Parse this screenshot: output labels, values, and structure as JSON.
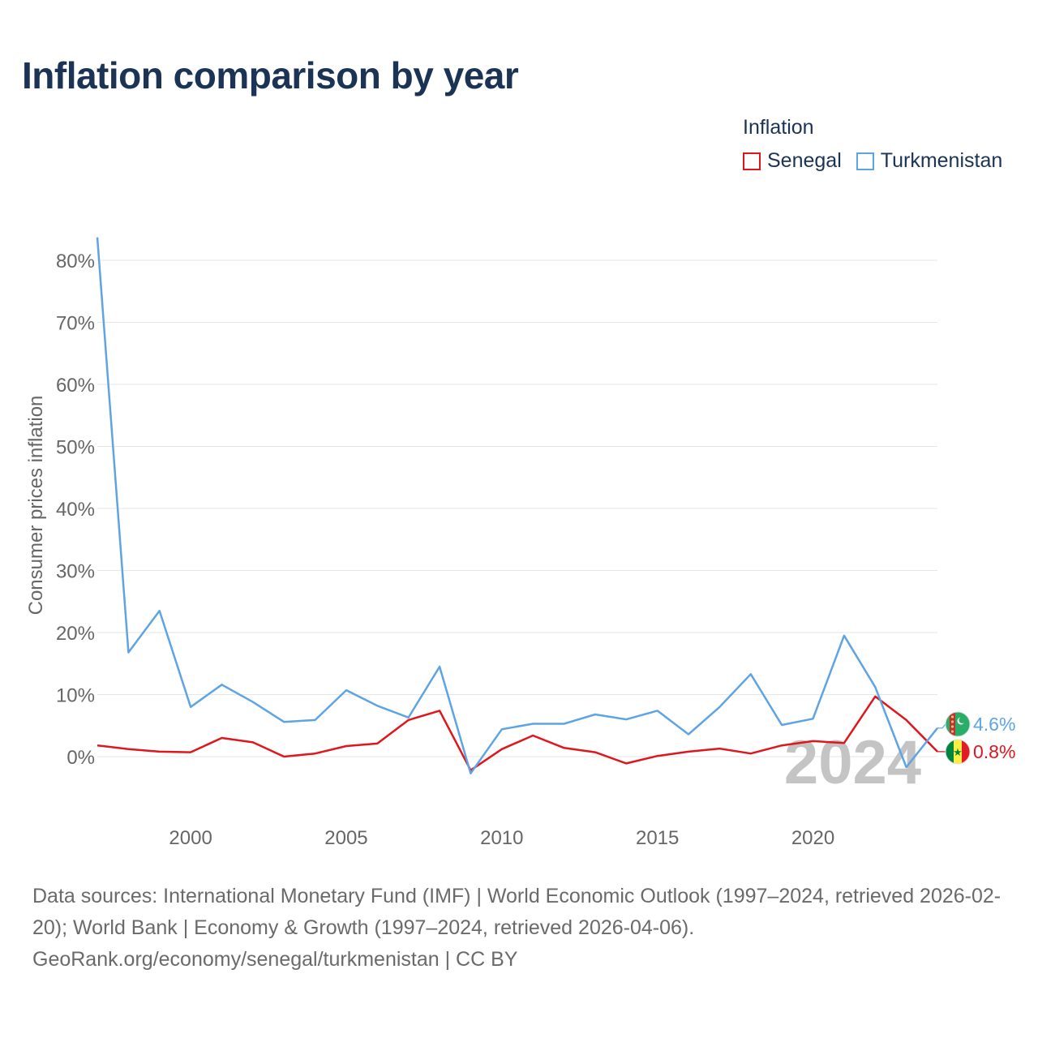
{
  "title": "Inflation comparison by year",
  "legend": {
    "title": "Inflation",
    "items": [
      {
        "label": "Senegal",
        "color": "#e0161d"
      },
      {
        "label": "Turkmenistan",
        "color": "#5ea4e4"
      }
    ]
  },
  "chart_data": {
    "type": "line",
    "title": "Inflation comparison by year",
    "xlabel": "",
    "ylabel": "Consumer prices inflation",
    "x": [
      1997,
      1998,
      1999,
      2000,
      2001,
      2002,
      2003,
      2004,
      2005,
      2006,
      2007,
      2008,
      2009,
      2010,
      2011,
      2012,
      2013,
      2014,
      2015,
      2016,
      2017,
      2018,
      2019,
      2020,
      2021,
      2022,
      2023,
      2024
    ],
    "xlim": [
      1997,
      2024
    ],
    "ylim": [
      -10,
      84
    ],
    "x_ticks": [
      2000,
      2005,
      2010,
      2015,
      2020
    ],
    "y_ticks": [
      0,
      10,
      20,
      30,
      40,
      50,
      60,
      70,
      80
    ],
    "y_tick_labels": [
      "0%",
      "10%",
      "20%",
      "30%",
      "40%",
      "50%",
      "60%",
      "70%",
      "80%"
    ],
    "series": [
      {
        "name": "Senegal",
        "color": "#e0161d",
        "values": [
          1.8,
          1.2,
          0.8,
          0.7,
          3.0,
          2.3,
          0.0,
          0.5,
          1.7,
          2.1,
          5.9,
          7.4,
          -2.2,
          1.2,
          3.4,
          1.4,
          0.7,
          -1.1,
          0.1,
          0.8,
          1.3,
          0.5,
          1.8,
          2.5,
          2.2,
          9.7,
          5.9,
          0.8
        ],
        "end_label": "0.8%"
      },
      {
        "name": "Turkmenistan",
        "color": "#5ea4e4",
        "values": [
          83.7,
          16.8,
          23.5,
          8.0,
          11.6,
          8.8,
          5.6,
          5.9,
          10.7,
          8.2,
          6.3,
          14.5,
          -2.7,
          4.4,
          5.3,
          5.3,
          6.8,
          6.0,
          7.4,
          3.6,
          8.0,
          13.3,
          5.1,
          6.1,
          19.5,
          11.2,
          -1.7,
          4.6
        ],
        "end_label": "4.6%"
      }
    ],
    "year_watermark": "2024"
  },
  "footer": {
    "sources": "Data sources: International Monetary Fund (IMF) | World Economic Outlook (1997–2024, retrieved 2026-02-20); World Bank | Economy & Growth (1997–2024, retrieved 2026-04-06).",
    "site": "GeoRank.org/economy/senegal/turkmenistan | CC BY"
  },
  "icons": {
    "turkmenistan_flag": "turkmenistan-flag-icon",
    "senegal_flag": "senegal-flag-icon"
  },
  "colors": {
    "title": "#1b3354",
    "senegal": "#e0161d",
    "turkmenistan": "#5ea4e4",
    "axis_text": "#666666",
    "watermark": "#c4c4c4"
  }
}
